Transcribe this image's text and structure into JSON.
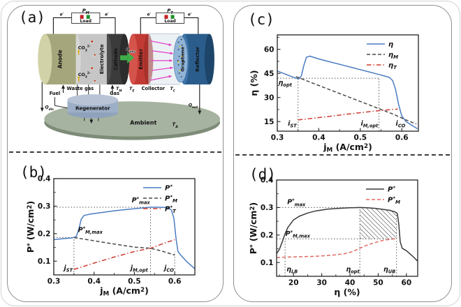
{
  "colors": {
    "blue_curve": "#4a7cc2",
    "dark_dash": "#4a4a4a",
    "red_dashdot": "#d23b32",
    "red_dashed_d": "#e06a62",
    "black_solid_d": "#3a3a3a",
    "guide_dotted": "#555555",
    "panel_border": "#8f8f8f"
  },
  "schematic": {
    "panel_label": "(a)",
    "components": {
      "anode": "Anode",
      "electrolyte": "Electrolyte",
      "cathode": "Cathode",
      "emitter": "Emitter",
      "graphene": "Graphene",
      "reflector": "Reflector",
      "collector": "Collector",
      "regenerator": "Regenerator",
      "ambient": "Ambient",
      "load_left": "Load",
      "load_right": "Load"
    },
    "labels": {
      "p_m": "P~M~",
      "p_t": "P~T~",
      "e_minus": "e^-^",
      "co3": "CO~3~^2-^",
      "q_abs": "Q~abs~",
      "q_dis": "Q~dis~",
      "q_out": "Q~out~",
      "t_m": "T~M~",
      "t_e": "T~E~",
      "t_c": "T~C~",
      "t_a": "T~A~",
      "waste_gas": "Waste gas",
      "fuel": "Fuel",
      "gas": "Gas"
    }
  },
  "chart_data": [
    {
      "id": "b",
      "type": "line",
      "panel_label": "(b)",
      "xlabel": "j~M~ (A/cm^2^)",
      "ylabel": "P^*^ (W/cm^2^)",
      "xlim": [
        0.3,
        0.65
      ],
      "ylim": [
        0.05,
        0.4
      ],
      "xticks": [
        0.3,
        0.4,
        0.5,
        0.6
      ],
      "xtick_labels": [
        "0.3",
        "0.4",
        "0.5",
        "0.6"
      ],
      "yticks": [
        0.1,
        0.2,
        0.3,
        0.4
      ],
      "ytick_labels": [
        "0.1",
        "0.2",
        "0.3",
        "0.4"
      ],
      "grid": false,
      "legend_position": "top-right",
      "series": [
        {
          "name": "P^*^",
          "color": "#4a7cc2",
          "dash": "solid",
          "x": [
            0.3,
            0.32,
            0.34,
            0.35,
            0.356,
            0.362,
            0.368,
            0.375,
            0.39,
            0.42,
            0.45,
            0.48,
            0.51,
            0.54,
            0.56,
            0.575,
            0.585,
            0.592,
            0.598,
            0.603,
            0.608,
            0.615,
            0.63,
            0.65
          ],
          "y": [
            0.178,
            0.181,
            0.184,
            0.186,
            0.19,
            0.215,
            0.252,
            0.266,
            0.271,
            0.277,
            0.283,
            0.288,
            0.292,
            0.296,
            0.296,
            0.295,
            0.293,
            0.285,
            0.255,
            0.185,
            0.135,
            0.122,
            0.098,
            0.072
          ]
        },
        {
          "name": "P^*^~M~",
          "color": "#4a4a4a",
          "dash": "dashed",
          "x": [
            0.35,
            0.4,
            0.45,
            0.5,
            0.54,
            0.57,
            0.6
          ],
          "y": [
            0.186,
            0.174,
            0.162,
            0.151,
            0.147,
            0.136,
            0.122
          ]
        },
        {
          "name": "P^*^~T~",
          "color": "#d23b32",
          "dash": "dashdot",
          "x": [
            0.35,
            0.4,
            0.45,
            0.5,
            0.54,
            0.57,
            0.6
          ],
          "y": [
            0.07,
            0.093,
            0.115,
            0.135,
            0.147,
            0.163,
            0.178
          ]
        }
      ],
      "guides": [
        {
          "type": "h",
          "y": 0.296,
          "x1": 0.3,
          "x2": 0.585
        },
        {
          "type": "h",
          "y": 0.186,
          "x1": 0.3,
          "x2": 0.362
        },
        {
          "type": "v",
          "x": 0.35,
          "y1": 0.05,
          "y2": 0.186
        },
        {
          "type": "v",
          "x": 0.54,
          "y1": 0.05,
          "y2": 0.296
        },
        {
          "type": "v",
          "x": 0.6,
          "y1": 0.05,
          "y2": 0.135
        }
      ],
      "annotations": [
        {
          "text": "P^*^~M,max~",
          "x": 0.36,
          "y": 0.206,
          "anchor": "start"
        },
        {
          "text": "P^*^~max~",
          "x": 0.516,
          "y": 0.314,
          "anchor": "middle"
        },
        {
          "text": "j~ST~",
          "x": 0.336,
          "y": 0.068,
          "anchor": "middle"
        },
        {
          "text": "j~M,opt~",
          "x": 0.512,
          "y": 0.068,
          "anchor": "middle"
        },
        {
          "text": "j~CO~",
          "x": 0.586,
          "y": 0.068,
          "anchor": "middle"
        }
      ]
    },
    {
      "id": "c",
      "type": "line",
      "panel_label": "(c)",
      "xlabel": "j~M~ (A/cm^2^)",
      "ylabel": "η (%)",
      "xlim": [
        0.3,
        0.64
      ],
      "ylim": [
        9,
        69
      ],
      "xticks": [
        0.3,
        0.4,
        0.5,
        0.6
      ],
      "xtick_labels": [
        "0.3",
        "0.4",
        "0.5",
        "0.6"
      ],
      "yticks": [
        15,
        30,
        45,
        60
      ],
      "ytick_labels": [
        "15",
        "30",
        "45",
        "60"
      ],
      "grid": false,
      "legend_position": "top-right",
      "series": [
        {
          "name": "η",
          "color": "#4a7cc2",
          "dash": "solid",
          "x": [
            0.3,
            0.315,
            0.33,
            0.345,
            0.352,
            0.358,
            0.364,
            0.37,
            0.378,
            0.4,
            0.43,
            0.46,
            0.49,
            0.52,
            0.545,
            0.56,
            0.57,
            0.578,
            0.585,
            0.592,
            0.6,
            0.61,
            0.625,
            0.638
          ],
          "y": [
            46.5,
            45.0,
            43.5,
            42.0,
            41.6,
            43.5,
            50.0,
            55.0,
            55.8,
            54.0,
            52.0,
            50.0,
            48.0,
            46.0,
            44.3,
            43.3,
            42.5,
            40.5,
            35.0,
            26.0,
            18.5,
            15.0,
            12.5,
            10.5
          ]
        },
        {
          "name": "η~M~",
          "color": "#4a4a4a",
          "dash": "dashed",
          "x": [
            0.345,
            0.4,
            0.45,
            0.5,
            0.545,
            0.58,
            0.61,
            0.635
          ],
          "y": [
            43.0,
            37.5,
            32.5,
            27.5,
            23.0,
            19.5,
            16.0,
            13.5
          ]
        },
        {
          "name": "η~T~",
          "color": "#d23b32",
          "dash": "dashdot",
          "x": [
            0.35,
            0.4,
            0.45,
            0.5,
            0.545,
            0.59
          ],
          "y": [
            16.0,
            17.5,
            19.0,
            20.5,
            21.8,
            22.8
          ]
        }
      ],
      "guides": [
        {
          "type": "h",
          "y": 42,
          "x1": 0.3,
          "x2": 0.545
        },
        {
          "type": "v",
          "x": 0.35,
          "y1": 9,
          "y2": 42
        },
        {
          "type": "v",
          "x": 0.545,
          "y1": 9,
          "y2": 42
        }
      ],
      "annotations": [
        {
          "text": "η~opt~",
          "x": 0.319,
          "y": 38.0,
          "anchor": "middle"
        },
        {
          "text": "i~ST~",
          "x": 0.336,
          "y": 12.5,
          "anchor": "middle"
        },
        {
          "text": "i~M,opt~",
          "x": 0.522,
          "y": 12.5,
          "anchor": "middle"
        },
        {
          "text": "i~CO~",
          "x": 0.597,
          "y": 12.5,
          "anchor": "middle"
        }
      ]
    },
    {
      "id": "d",
      "type": "line",
      "panel_label": "(d)",
      "xlabel": "η (%)",
      "ylabel": "P^*^ (W/cm^2^)",
      "xlim": [
        14,
        64
      ],
      "ylim": [
        0.05,
        0.4
      ],
      "xticks": [
        20,
        30,
        40,
        50,
        60
      ],
      "xtick_labels": [
        "20",
        "30",
        "40",
        "50",
        "60"
      ],
      "yticks": [
        0.1,
        0.2,
        0.3,
        0.4
      ],
      "ytick_labels": [
        "0.1",
        "0.2",
        "0.3",
        "0.4"
      ],
      "grid": false,
      "legend_position": "top-right",
      "series": [
        {
          "name": "P^*^",
          "color": "#3a3a3a",
          "dash": "solid",
          "x": [
            14,
            15,
            16,
            17,
            18,
            20,
            22,
            25,
            28,
            32,
            36,
            40,
            43.5,
            46,
            49,
            52,
            54,
            56,
            56.8,
            57.3,
            57.8,
            58.5,
            60,
            62,
            64
          ],
          "y": [
            0.133,
            0.148,
            0.175,
            0.205,
            0.228,
            0.255,
            0.268,
            0.28,
            0.288,
            0.294,
            0.297,
            0.299,
            0.3,
            0.299,
            0.297,
            0.293,
            0.29,
            0.284,
            0.278,
            0.24,
            0.175,
            0.152,
            0.143,
            0.125,
            0.105
          ]
        },
        {
          "name": "P^*^~M~",
          "color": "#e06a62",
          "dash": "dashed",
          "x": [
            14,
            18,
            22,
            26,
            30,
            34,
            38,
            41,
            43.5,
            46,
            48,
            50,
            52,
            54,
            55.5,
            56.5
          ],
          "y": [
            0.118,
            0.12,
            0.121,
            0.122,
            0.124,
            0.127,
            0.132,
            0.14,
            0.152,
            0.163,
            0.17,
            0.176,
            0.181,
            0.184,
            0.186,
            0.185
          ]
        }
      ],
      "guides": [
        {
          "type": "h",
          "y": 0.3,
          "x1": 14,
          "x2": 43.5
        },
        {
          "type": "h",
          "y": 0.186,
          "x1": 14,
          "x2": 56.5
        },
        {
          "type": "v",
          "x": 17,
          "y1": 0.05,
          "y2": 0.186
        },
        {
          "type": "v",
          "x": 43.5,
          "y1": 0.05,
          "y2": 0.3
        },
        {
          "type": "v",
          "x": 56.5,
          "y1": 0.05,
          "y2": 0.284
        }
      ],
      "hatch": {
        "x1": 43.5,
        "x2": 56.5,
        "bottom": 0.186,
        "series": 0
      },
      "annotations": [
        {
          "text": "P^*^~max~",
          "x": 21.0,
          "y": 0.312,
          "anchor": "middle"
        },
        {
          "text": "P^*^~M,max~",
          "x": 21.5,
          "y": 0.197,
          "anchor": "middle"
        },
        {
          "text": "η~LB~",
          "x": 19.5,
          "y": 0.068,
          "anchor": "middle"
        },
        {
          "text": "η~opt~",
          "x": 41.0,
          "y": 0.068,
          "anchor": "middle"
        },
        {
          "text": "η~UB~",
          "x": 54.0,
          "y": 0.068,
          "anchor": "middle"
        }
      ]
    }
  ]
}
